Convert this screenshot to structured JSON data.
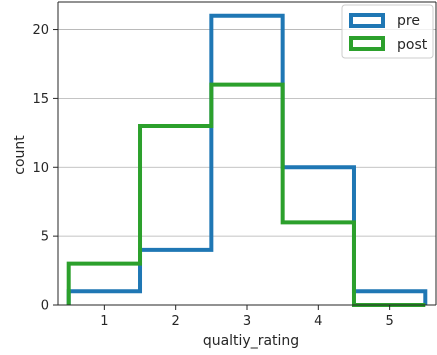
{
  "chart_data": {
    "type": "histogram",
    "xlabel": "qualtiy_rating",
    "ylabel": "count",
    "xlim": [
      0.35,
      5.65
    ],
    "ylim": [
      0,
      22
    ],
    "x_ticks": [
      1,
      2,
      3,
      4,
      5
    ],
    "y_ticks": [
      0,
      5,
      10,
      15,
      20
    ],
    "bin_edges": [
      0.5,
      1.5,
      2.5,
      3.5,
      4.5,
      5.5
    ],
    "grid": "horizontal",
    "legend_position": "top-right",
    "series": [
      {
        "name": "pre",
        "color": "#1f77b4",
        "values": [
          1,
          4,
          21,
          10,
          1
        ]
      },
      {
        "name": "post",
        "color": "#2ca02c",
        "values": [
          3,
          13,
          16,
          6,
          0
        ]
      }
    ]
  }
}
